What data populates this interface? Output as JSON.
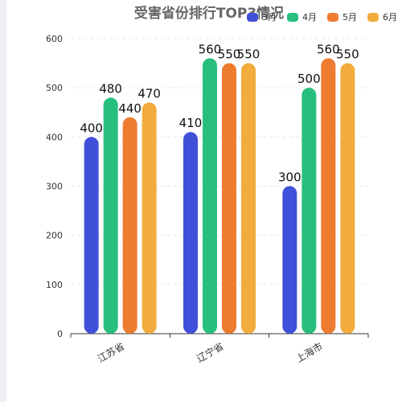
{
  "chart_data": {
    "type": "bar",
    "title": "受害省份排行TOP3情况",
    "categories": [
      "江苏省",
      "辽宁省",
      "上海市"
    ],
    "series": [
      {
        "name": "3月",
        "values": [
          400,
          410,
          300
        ],
        "color": "#4150d8"
      },
      {
        "name": "4月",
        "values": [
          480,
          560,
          500
        ],
        "color": "#28bf7e"
      },
      {
        "name": "5月",
        "values": [
          440,
          550,
          560
        ],
        "color": "#ed7c30"
      },
      {
        "name": "6月",
        "values": [
          470,
          550,
          550
        ],
        "color": "#f2ac3c"
      }
    ],
    "ylim": [
      0,
      600
    ],
    "yticks": [
      0,
      100,
      200,
      300,
      400,
      500,
      600
    ],
    "grid": true,
    "legend_position": "top-right",
    "data_labels": true
  }
}
